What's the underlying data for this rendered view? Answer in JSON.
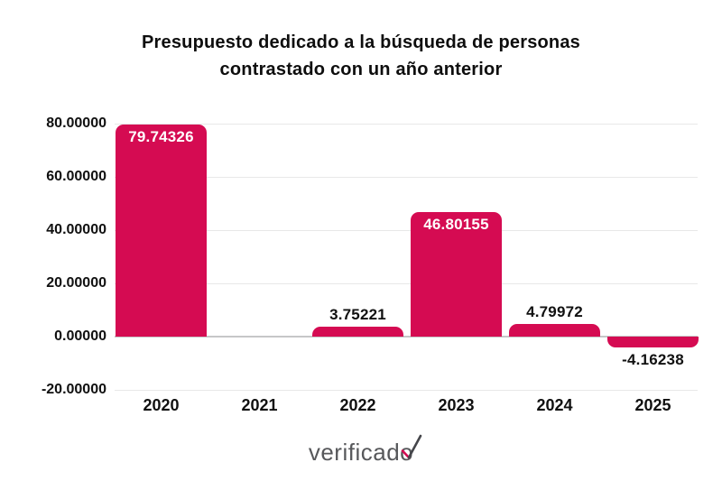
{
  "title": {
    "line1": "Presupuesto dedicado a la búsqueda de personas",
    "line2": "contrastado con un año anterior"
  },
  "chart_data": {
    "type": "bar",
    "title": "Presupuesto dedicado a la búsqueda de personas contrastado con un año anterior",
    "categories": [
      "2020",
      "2021",
      "2022",
      "2023",
      "2024",
      "2025"
    ],
    "values": [
      79.74326,
      null,
      3.75221,
      46.80155,
      4.79972,
      -4.16238
    ],
    "data_labels": [
      "79.74326",
      "",
      "3.75221",
      "46.80155",
      "4.79972",
      "-4.16238"
    ],
    "xlabel": "",
    "ylabel": "",
    "ylim": [
      -20,
      80
    ],
    "y_ticks": [
      {
        "value": 80,
        "label": "80.00000"
      },
      {
        "value": 60,
        "label": "60.00000"
      },
      {
        "value": 40,
        "label": "40.00000"
      },
      {
        "value": 20,
        "label": "20.00000"
      },
      {
        "value": 0,
        "label": "0.00000"
      },
      {
        "value": -20,
        "label": "-20.00000"
      }
    ],
    "grid": true,
    "legend": false,
    "bar_color": "#d50b52",
    "label_inside_color": "#ffffff",
    "label_outside_color": "#111111"
  },
  "footer": {
    "brand": "verificado",
    "brand_color": "#57585b",
    "check_color": "#d50b52",
    "check_dark_color": "#45464b"
  }
}
